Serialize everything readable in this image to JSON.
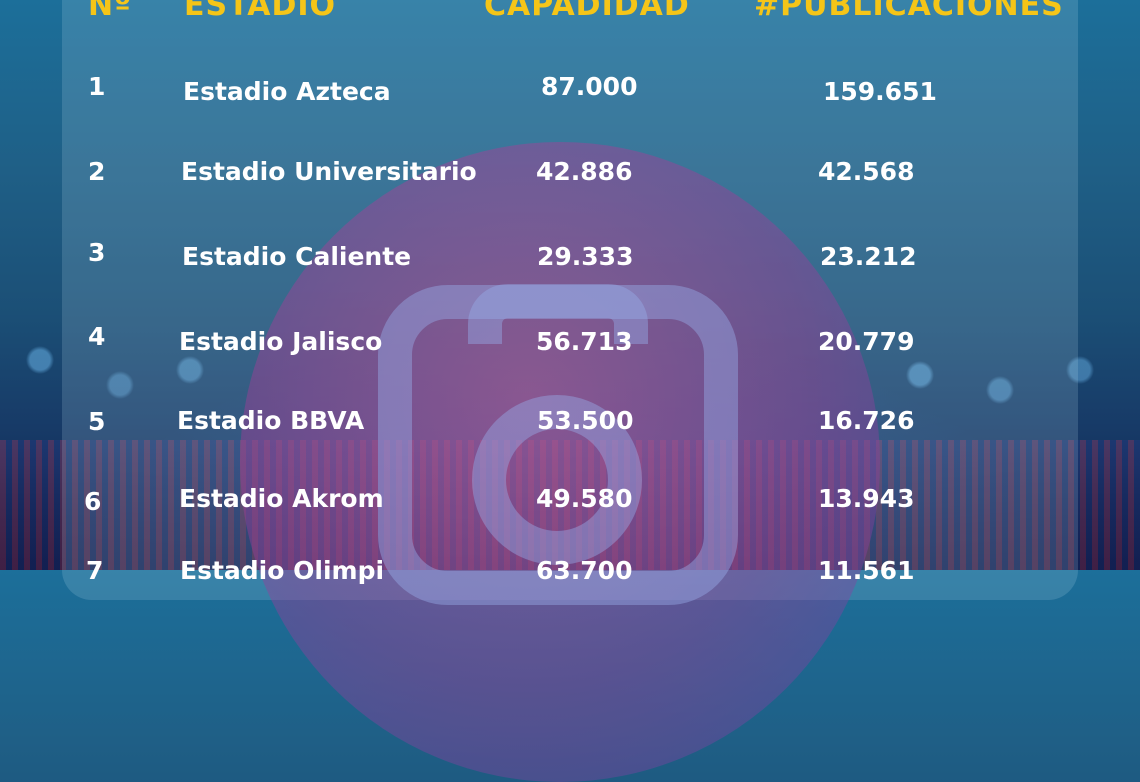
{
  "headers": {
    "num": "Nº",
    "stadium": "ESTADIO",
    "capacity": "CAPADIDAD",
    "posts": "#PUBLICACIONES"
  },
  "rows": [
    {
      "num": "1",
      "stadium": "Estadio Azteca",
      "capacity": "87.000",
      "posts": "159.651"
    },
    {
      "num": "2",
      "stadium": "Estadio Universitario",
      "capacity": "42.886",
      "posts": "42.568"
    },
    {
      "num": "3",
      "stadium": "Estadio Caliente",
      "capacity": "29.333",
      "posts": "23.212"
    },
    {
      "num": "4",
      "stadium": "Estadio Jalisco",
      "capacity": "56.713",
      "posts": "20.779"
    },
    {
      "num": "5",
      "stadium": "Estadio BBVA",
      "capacity": "53.500",
      "posts": "16.726"
    },
    {
      "num": "6",
      "stadium": "Estadio Akrom",
      "capacity": "49.580",
      "posts": "13.943"
    },
    {
      "num": "7",
      "stadium": "Estadio Olimpi",
      "capacity": "63.700",
      "posts": "11.561"
    }
  ],
  "colors": {
    "header": "#f5c518",
    "text": "#ffffff"
  },
  "background_icon": "camera-icon"
}
